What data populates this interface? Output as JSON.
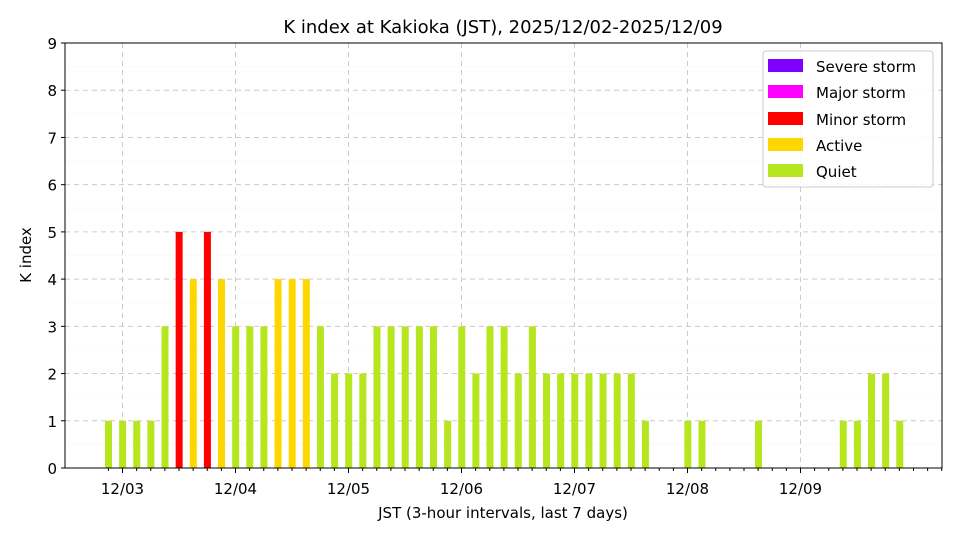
{
  "chart_data": {
    "type": "bar",
    "title": "K index at Kakioka (JST), 2025/12/02-2025/12/09",
    "xlabel": "JST (3-hour intervals, last 7 days)",
    "ylabel": "K index",
    "ylim": [
      0,
      9
    ],
    "yticks": [
      "0",
      "1",
      "2",
      "3",
      "4",
      "5",
      "6",
      "7",
      "8",
      "9"
    ],
    "x_tick_labels": [
      "12/03",
      "12/04",
      "12/05",
      "12/06",
      "12/07",
      "12/08",
      "12/09"
    ],
    "interval_hours": 3,
    "values": [
      1,
      1,
      1,
      1,
      3,
      5,
      4,
      5,
      4,
      3,
      3,
      3,
      4,
      4,
      4,
      3,
      2,
      2,
      2,
      3,
      3,
      3,
      3,
      3,
      1,
      3,
      2,
      3,
      3,
      2,
      3,
      2,
      2,
      2,
      2,
      2,
      2,
      2,
      1,
      0,
      0,
      1,
      1,
      0,
      0,
      0,
      1,
      0,
      0,
      0,
      0,
      0,
      1,
      1,
      2,
      2,
      1,
      0
    ],
    "grid": {
      "major_dashed": true,
      "minor_dotted": true
    },
    "legend": {
      "position": "top-right",
      "entries": [
        {
          "label": "Severe storm",
          "color": "#7f00ff"
        },
        {
          "label": "Major storm",
          "color": "#ff00ff"
        },
        {
          "label": "Minor storm",
          "color": "#ff0000"
        },
        {
          "label": "Active",
          "color": "#ffd700"
        },
        {
          "label": "Quiet",
          "color": "#b6e61e"
        }
      ]
    },
    "color_rules": {
      "quiet_max": 3,
      "active_max": 4,
      "minor_max": 5,
      "major_max": 6
    }
  }
}
